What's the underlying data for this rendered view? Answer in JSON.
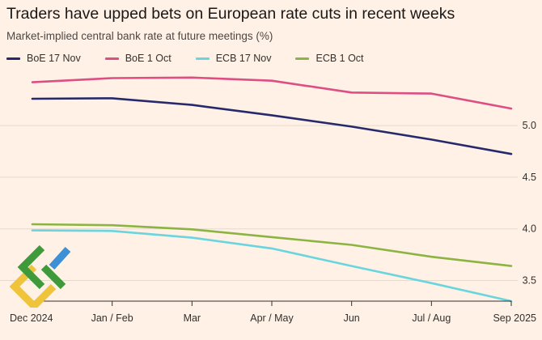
{
  "colors": {
    "background": "#fff1e5",
    "gridline": "#e6d9ce",
    "axis": "#33302e"
  },
  "chart_data": {
    "type": "line",
    "title": "Traders have upped bets on European rate cuts in recent weeks",
    "subtitle": "Market-implied central bank rate at future meetings (%)",
    "xlabel": "",
    "ylabel": "",
    "categories": [
      "Dec 2024",
      "Jan / Feb",
      "Mar",
      "Apr / May",
      "Jun",
      "Jul / Aug",
      "Sep 2025"
    ],
    "y_ticks": [
      3.5,
      4.0,
      4.5,
      5.0
    ],
    "y_tick_labels": [
      "3.5",
      "4.0",
      "4.5",
      "5.0"
    ],
    "ylim": [
      3.3,
      5.55
    ],
    "grid": true,
    "y_axis_side": "right",
    "legend_position": "top-left",
    "series": [
      {
        "name": "BoE 17 Nov",
        "color": "#262a6c",
        "values": [
          5.26,
          5.265,
          5.2,
          5.1,
          4.99,
          4.865,
          4.725
        ]
      },
      {
        "name": "BoE 1 Oct",
        "color": "#dd4f84",
        "values": [
          5.42,
          5.46,
          5.465,
          5.435,
          5.32,
          5.31,
          5.165
        ]
      },
      {
        "name": "ECB 17 Nov",
        "color": "#6ad5de",
        "values": [
          3.985,
          3.98,
          3.915,
          3.81,
          3.64,
          3.475,
          3.3
        ]
      },
      {
        "name": "ECB 1 Oct",
        "color": "#8cb443",
        "values": [
          4.045,
          4.035,
          3.995,
          3.92,
          3.845,
          3.73,
          3.64
        ]
      }
    ]
  }
}
